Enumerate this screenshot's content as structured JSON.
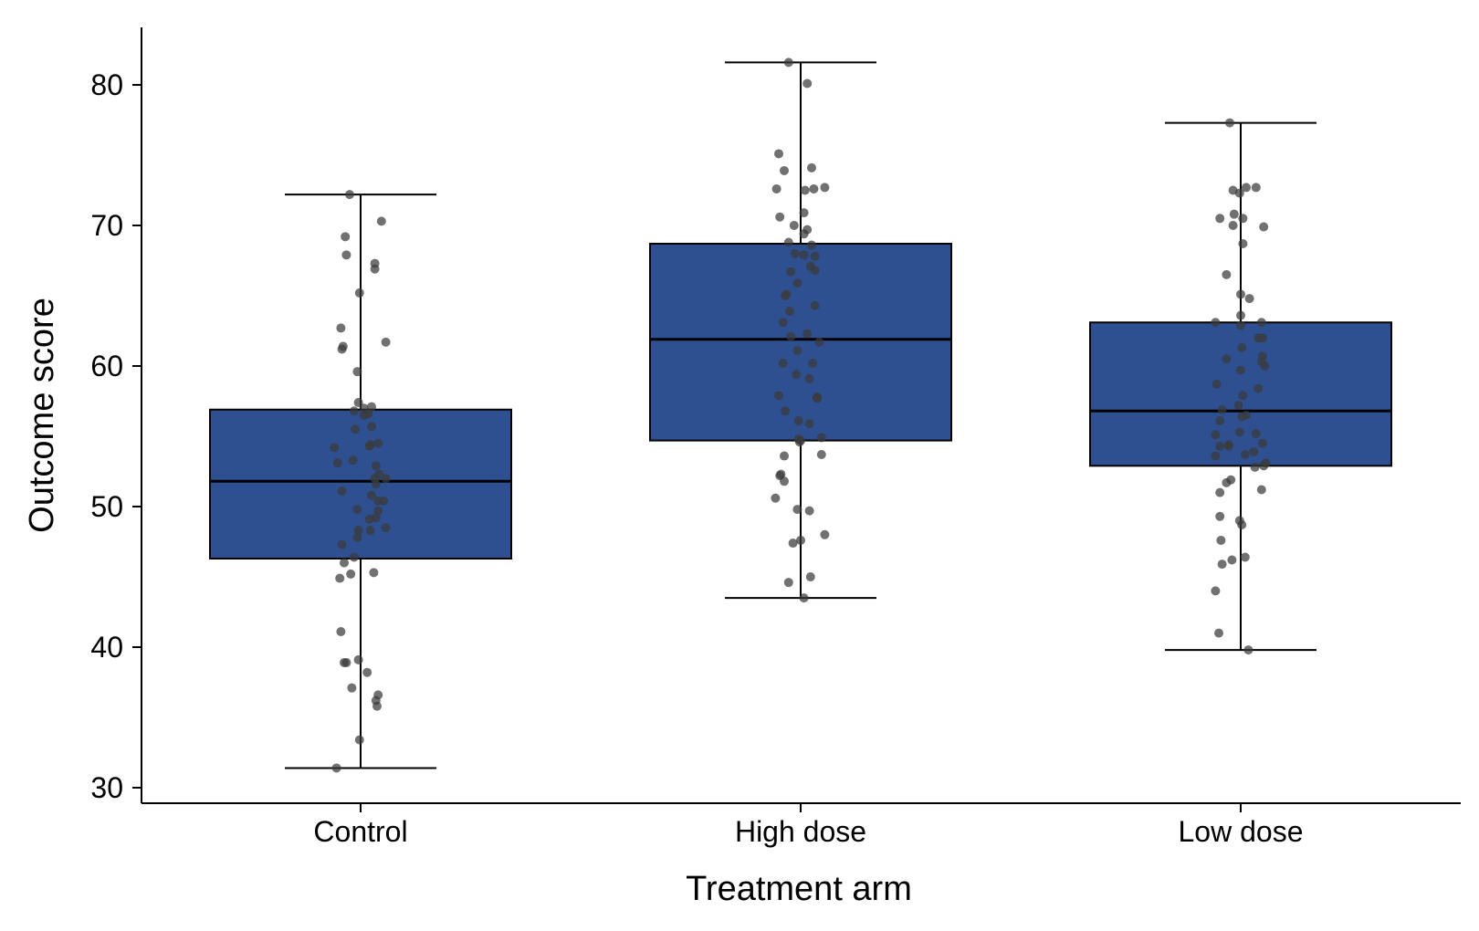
{
  "chart_data": {
    "type": "box",
    "title": "",
    "xlabel": "Treatment arm",
    "ylabel": "Outcome score",
    "ylim": [
      29,
      84
    ],
    "yticks": [
      30,
      40,
      50,
      60,
      70,
      80
    ],
    "grid": false,
    "legend": "none",
    "box_color": "#2f5090",
    "point_color": "#3a3a3a",
    "categories": [
      "Control",
      "High dose",
      "Low dose"
    ],
    "boxes": [
      {
        "category": "Control",
        "whisker_low": 31.4,
        "q1": 46.3,
        "median": 51.8,
        "q3": 56.9,
        "whisker_high": 72.2
      },
      {
        "category": "High dose",
        "whisker_low": 43.5,
        "q1": 54.7,
        "median": 61.9,
        "q3": 68.7,
        "whisker_high": 81.6
      },
      {
        "category": "Low dose",
        "whisker_low": 39.8,
        "q1": 52.9,
        "median": 56.8,
        "q3": 63.1,
        "whisker_high": 77.3
      }
    ],
    "points": [
      [
        [
          -0.22,
          31.4
        ],
        [
          -0.01,
          33.4
        ],
        [
          0.15,
          35.8
        ],
        [
          0.14,
          36.2
        ],
        [
          0.16,
          36.6
        ],
        [
          -0.08,
          37.1
        ],
        [
          -0.13,
          38.9
        ],
        [
          -0.15,
          38.9
        ],
        [
          -0.02,
          39.1
        ],
        [
          0.06,
          38.2
        ],
        [
          -0.18,
          41.1
        ],
        [
          -0.19,
          44.9
        ],
        [
          -0.09,
          45.2
        ],
        [
          0.12,
          45.3
        ],
        [
          -0.15,
          46.0
        ],
        [
          -0.06,
          46.4
        ],
        [
          -0.17,
          47.3
        ],
        [
          -0.03,
          47.8
        ],
        [
          -0.02,
          48.3
        ],
        [
          0.09,
          48.3
        ],
        [
          0.23,
          48.5
        ],
        [
          0.08,
          49.1
        ],
        [
          0.14,
          49.2
        ],
        [
          0.16,
          49.7
        ],
        [
          -0.03,
          49.8
        ],
        [
          0.16,
          50.4
        ],
        [
          0.21,
          50.4
        ],
        [
          0.1,
          50.8
        ],
        [
          -0.17,
          51.1
        ],
        [
          0.14,
          51.6
        ],
        [
          0.23,
          52.0
        ],
        [
          0.13,
          52.0
        ],
        [
          0.17,
          52.3
        ],
        [
          0.14,
          52.9
        ],
        [
          -0.21,
          53.1
        ],
        [
          -0.07,
          53.3
        ],
        [
          -0.24,
          54.2
        ],
        [
          0.08,
          54.3
        ],
        [
          0.09,
          54.4
        ],
        [
          0.16,
          54.5
        ],
        [
          -0.05,
          55.5
        ],
        [
          0.1,
          55.7
        ],
        [
          0.03,
          56.5
        ],
        [
          0.07,
          56.6
        ],
        [
          -0.06,
          56.8
        ],
        [
          0.03,
          57.0
        ],
        [
          0.1,
          57.1
        ],
        [
          -0.02,
          57.4
        ],
        [
          -0.03,
          59.6
        ],
        [
          -0.01,
          65.2
        ],
        [
          -0.17,
          61.2
        ],
        [
          -0.16,
          61.4
        ],
        [
          -0.18,
          62.7
        ],
        [
          0.23,
          61.7
        ],
        [
          0.13,
          66.9
        ],
        [
          0.13,
          67.3
        ],
        [
          -0.13,
          67.9
        ],
        [
          -0.14,
          69.2
        ],
        [
          0.19,
          70.3
        ],
        [
          -0.1,
          72.2
        ]
      ],
      [
        [
          -0.11,
          81.6
        ],
        [
          0.06,
          80.1
        ],
        [
          -0.2,
          75.1
        ],
        [
          -0.15,
          73.9
        ],
        [
          0.1,
          74.1
        ],
        [
          -0.22,
          72.6
        ],
        [
          0.04,
          72.5
        ],
        [
          0.12,
          72.6
        ],
        [
          0.22,
          72.7
        ],
        [
          -0.19,
          70.6
        ],
        [
          0.03,
          70.9
        ],
        [
          -0.06,
          70.0
        ],
        [
          0.03,
          69.4
        ],
        [
          0.06,
          69.7
        ],
        [
          -0.11,
          68.8
        ],
        [
          0.1,
          68.6
        ],
        [
          -0.05,
          68.0
        ],
        [
          0.03,
          67.9
        ],
        [
          0.13,
          67.8
        ],
        [
          0.09,
          67.1
        ],
        [
          0.13,
          66.8
        ],
        [
          -0.09,
          66.7
        ],
        [
          -0.03,
          65.9
        ],
        [
          -0.14,
          65.0
        ],
        [
          -0.13,
          65.1
        ],
        [
          0.13,
          64.3
        ],
        [
          -0.1,
          63.9
        ],
        [
          -0.16,
          63.1
        ],
        [
          0.06,
          62.3
        ],
        [
          -0.09,
          62.1
        ],
        [
          0.17,
          61.7
        ],
        [
          -0.03,
          61.1
        ],
        [
          0.11,
          60.2
        ],
        [
          -0.16,
          60.2
        ],
        [
          -0.04,
          59.4
        ],
        [
          0.08,
          59.1
        ],
        [
          0.15,
          57.8
        ],
        [
          0.15,
          57.7
        ],
        [
          -0.2,
          57.9
        ],
        [
          -0.14,
          56.8
        ],
        [
          -0.02,
          56.1
        ],
        [
          0.08,
          55.9
        ],
        [
          0.19,
          54.9
        ],
        [
          -0.02,
          54.8
        ],
        [
          -0.01,
          54.6
        ],
        [
          0.19,
          53.7
        ],
        [
          -0.15,
          53.6
        ],
        [
          -0.19,
          52.2
        ],
        [
          -0.18,
          52.3
        ],
        [
          -0.15,
          51.8
        ],
        [
          -0.23,
          50.6
        ],
        [
          -0.03,
          49.8
        ],
        [
          0.08,
          49.7
        ],
        [
          0.22,
          48.0
        ],
        [
          0.0,
          47.6
        ],
        [
          -0.07,
          47.4
        ],
        [
          -0.11,
          44.6
        ],
        [
          0.09,
          45.0
        ],
        [
          0.03,
          43.5
        ],
        [
          0.0,
          54.7
        ]
      ],
      [
        [
          -0.1,
          77.3
        ],
        [
          -0.07,
          72.5
        ],
        [
          -0.01,
          72.3
        ],
        [
          -0.07,
          70.0
        ],
        [
          0.05,
          72.7
        ],
        [
          0.02,
          70.5
        ],
        [
          0.14,
          72.7
        ],
        [
          -0.19,
          70.5
        ],
        [
          0.21,
          69.9
        ],
        [
          -0.06,
          70.8
        ],
        [
          0.02,
          68.7
        ],
        [
          -0.13,
          66.5
        ],
        [
          0.08,
          64.8
        ],
        [
          0.0,
          65.1
        ],
        [
          0.0,
          63.6
        ],
        [
          0.0,
          62.9
        ],
        [
          0.19,
          63.1
        ],
        [
          -0.23,
          63.1
        ],
        [
          0.16,
          62.0
        ],
        [
          0.2,
          62.0
        ],
        [
          0.01,
          61.3
        ],
        [
          0.2,
          60.7
        ],
        [
          0.19,
          60.3
        ],
        [
          0.22,
          60.0
        ],
        [
          -0.13,
          60.5
        ],
        [
          0.0,
          59.7
        ],
        [
          -0.22,
          58.7
        ],
        [
          0.02,
          57.9
        ],
        [
          0.16,
          58.4
        ],
        [
          -0.02,
          57.2
        ],
        [
          -0.19,
          56.1
        ],
        [
          -0.17,
          56.9
        ],
        [
          0.01,
          56.4
        ],
        [
          0.05,
          56.5
        ],
        [
          -0.23,
          55.1
        ],
        [
          -0.01,
          55.3
        ],
        [
          0.14,
          55.2
        ],
        [
          -0.11,
          54.4
        ],
        [
          -0.11,
          54.3
        ],
        [
          0.2,
          54.5
        ],
        [
          -0.19,
          54.3
        ],
        [
          0.12,
          53.9
        ],
        [
          0.04,
          53.7
        ],
        [
          -0.23,
          53.6
        ],
        [
          0.23,
          53.1
        ],
        [
          0.13,
          52.8
        ],
        [
          0.21,
          52.9
        ],
        [
          -0.13,
          51.7
        ],
        [
          -0.09,
          51.9
        ],
        [
          0.19,
          51.2
        ],
        [
          -0.19,
          51.0
        ],
        [
          -0.19,
          49.3
        ],
        [
          -0.01,
          49.0
        ],
        [
          0.01,
          48.7
        ],
        [
          -0.18,
          47.6
        ],
        [
          -0.17,
          45.9
        ],
        [
          -0.08,
          46.2
        ],
        [
          0.04,
          46.4
        ],
        [
          -0.23,
          44.0
        ],
        [
          -0.2,
          41.0
        ],
        [
          0.07,
          39.8
        ]
      ]
    ]
  }
}
